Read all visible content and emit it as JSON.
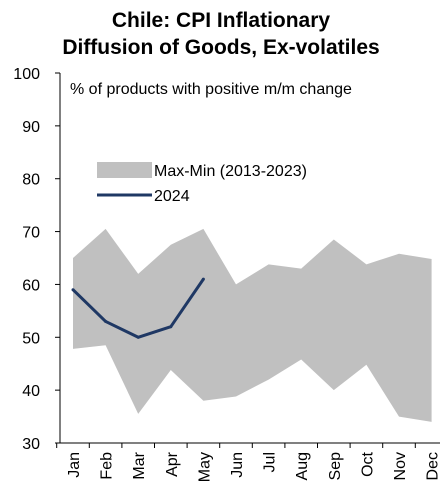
{
  "chart_data": {
    "type": "area",
    "title_line1": "Chile: CPI Inflationary",
    "title_line2": "Diffusion of Goods, Ex-volatiles",
    "annotation": "% of products with positive m/m change",
    "categories": [
      "Jan",
      "Feb",
      "Mar",
      "Apr",
      "May",
      "Jun",
      "Jul",
      "Aug",
      "Sep",
      "Oct",
      "Nov",
      "Dec"
    ],
    "ylim": [
      30,
      100
    ],
    "yticks": [
      30,
      40,
      50,
      60,
      70,
      80,
      90,
      100
    ],
    "series": [
      {
        "name": "Max-Min (2013-2023)",
        "kind": "band",
        "color": "#c0c0c0",
        "max": [
          65,
          70.5,
          62,
          67.5,
          70.5,
          60,
          63.8,
          63,
          68.5,
          63.8,
          65.8,
          64.8
        ],
        "min": [
          47.8,
          48.5,
          35.5,
          43.8,
          38,
          38.8,
          42,
          45.8,
          40,
          44.8,
          35,
          34
        ]
      },
      {
        "name": "2024",
        "kind": "line",
        "color": "#1f3864",
        "values": [
          59,
          53,
          50,
          52,
          61,
          null,
          null,
          null,
          null,
          null,
          null,
          null
        ]
      }
    ],
    "legend_position": "upper-left",
    "grid": false
  }
}
